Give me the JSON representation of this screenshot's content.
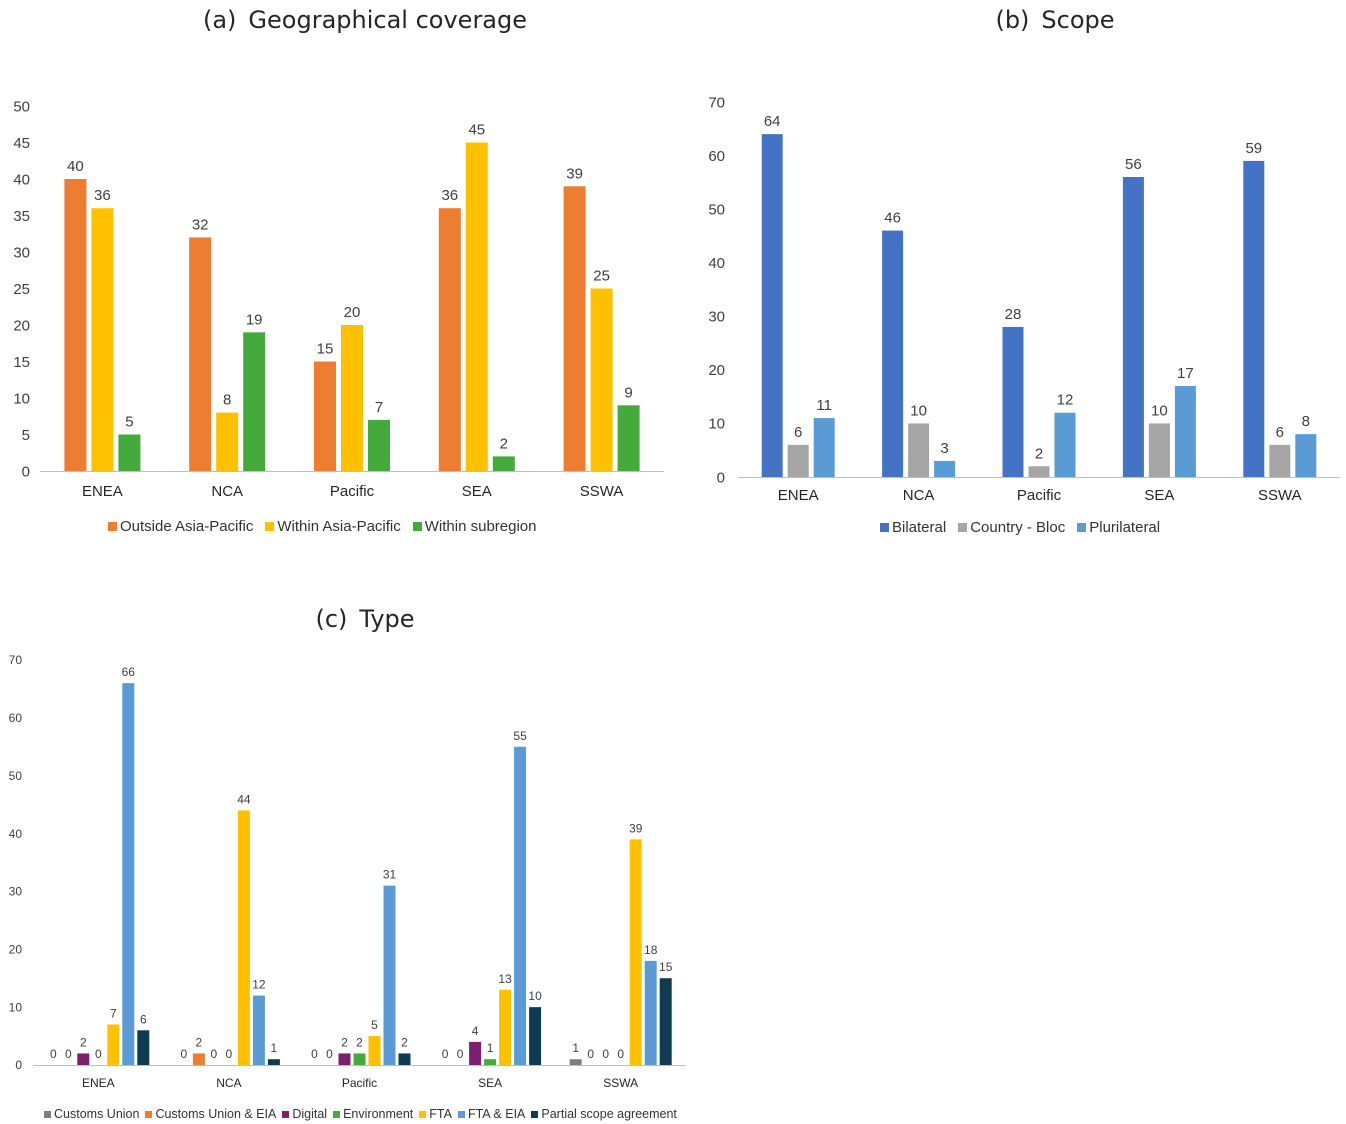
{
  "chart_data": [
    {
      "id": "a",
      "type": "bar",
      "title_label": "(a)",
      "title": "Geographical coverage",
      "categories": [
        "ENEA",
        "NCA",
        "Pacific",
        "SEA",
        "SSWA"
      ],
      "ylim": [
        0,
        50
      ],
      "yticks": [
        0,
        5,
        10,
        15,
        20,
        25,
        30,
        35,
        40,
        45,
        50
      ],
      "grid": false,
      "legend_position": "bottom",
      "series": [
        {
          "name": "Outside Asia-Pacific",
          "color": "#ED7D31",
          "values": [
            40,
            32,
            15,
            36,
            39
          ]
        },
        {
          "name": "Within Asia-Pacific",
          "color": "#FFC000",
          "values": [
            36,
            8,
            20,
            45,
            25
          ]
        },
        {
          "name": "Within subregion",
          "color": "#44AA3C",
          "values": [
            5,
            19,
            7,
            2,
            9
          ]
        }
      ]
    },
    {
      "id": "b",
      "type": "bar",
      "title_label": "(b)",
      "title": "Scope",
      "categories": [
        "ENEA",
        "NCA",
        "Pacific",
        "SEA",
        "SSWA"
      ],
      "ylim": [
        0,
        70
      ],
      "yticks": [
        0,
        10,
        20,
        30,
        40,
        50,
        60,
        70
      ],
      "grid": false,
      "legend_position": "bottom",
      "series": [
        {
          "name": "Bilateral",
          "color": "#4472C4",
          "values": [
            64,
            46,
            28,
            56,
            59
          ]
        },
        {
          "name": "Country - Bloc",
          "color": "#A5A5A5",
          "values": [
            6,
            10,
            2,
            10,
            6
          ]
        },
        {
          "name": "Plurilateral",
          "color": "#5B9BD5",
          "values": [
            11,
            3,
            12,
            17,
            8
          ]
        }
      ]
    },
    {
      "id": "c",
      "type": "bar",
      "title_label": "(c)",
      "title": "Type",
      "categories": [
        "ENEA",
        "NCA",
        "Pacific",
        "SEA",
        "SSWA"
      ],
      "ylim": [
        0,
        70
      ],
      "yticks": [
        0,
        10,
        20,
        30,
        40,
        50,
        60,
        70
      ],
      "grid": false,
      "legend_position": "bottom",
      "series": [
        {
          "name": "Customs Union",
          "color": "#7F7F7F",
          "values": [
            0,
            0,
            0,
            0,
            1
          ]
        },
        {
          "name": "Customs Union & EIA",
          "color": "#ED7D31",
          "values": [
            0,
            2,
            0,
            0,
            0
          ]
        },
        {
          "name": "Digital",
          "color": "#7B1F6E",
          "values": [
            2,
            0,
            2,
            4,
            0
          ]
        },
        {
          "name": "Environment",
          "color": "#44AA3C",
          "values": [
            0,
            0,
            2,
            1,
            0
          ]
        },
        {
          "name": "FTA",
          "color": "#FFC000",
          "values": [
            7,
            44,
            5,
            13,
            39
          ]
        },
        {
          "name": "FTA & EIA",
          "color": "#5B9BD5",
          "values": [
            66,
            12,
            31,
            55,
            18
          ]
        },
        {
          "name": "Partial scope agreement",
          "color": "#0E3A52",
          "values": [
            6,
            1,
            2,
            10,
            15
          ]
        }
      ]
    }
  ]
}
